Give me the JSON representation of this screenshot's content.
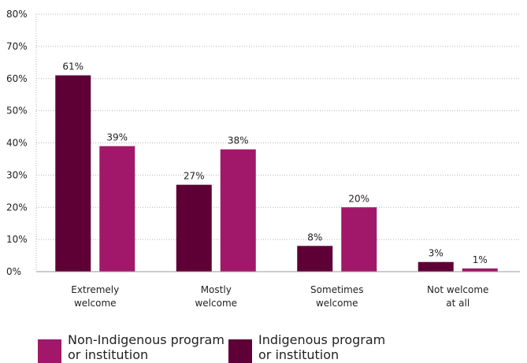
{
  "chart_data": {
    "type": "bar",
    "title": "",
    "xlabel": "",
    "ylabel": "",
    "categories": [
      [
        "Extremely",
        "welcome"
      ],
      [
        "Mostly",
        "welcome"
      ],
      [
        "Sometimes",
        "welcome"
      ],
      [
        "Not welcome",
        "at all"
      ]
    ],
    "series": [
      {
        "name": "Indigenous program or institution",
        "values": [
          61,
          27,
          8,
          3
        ],
        "color": "#5e0035"
      },
      {
        "name": "Non-Indigenous program or institution",
        "values": [
          39,
          38,
          20,
          1
        ],
        "color": "#a1186a"
      }
    ],
    "value_suffix": "%",
    "ylim": [
      0,
      80
    ],
    "yticks": [
      "0%",
      "10%",
      "20%",
      "30%",
      "40%",
      "50%",
      "60%",
      "70%",
      "80%"
    ],
    "grid": "dotted horizontal",
    "legend_position": "bottom"
  },
  "legend": [
    {
      "label": "Non-Indigenous program\nor institution",
      "color": "#a1186a"
    },
    {
      "label": "Indigenous program\nor institution",
      "color": "#5e0035"
    }
  ]
}
